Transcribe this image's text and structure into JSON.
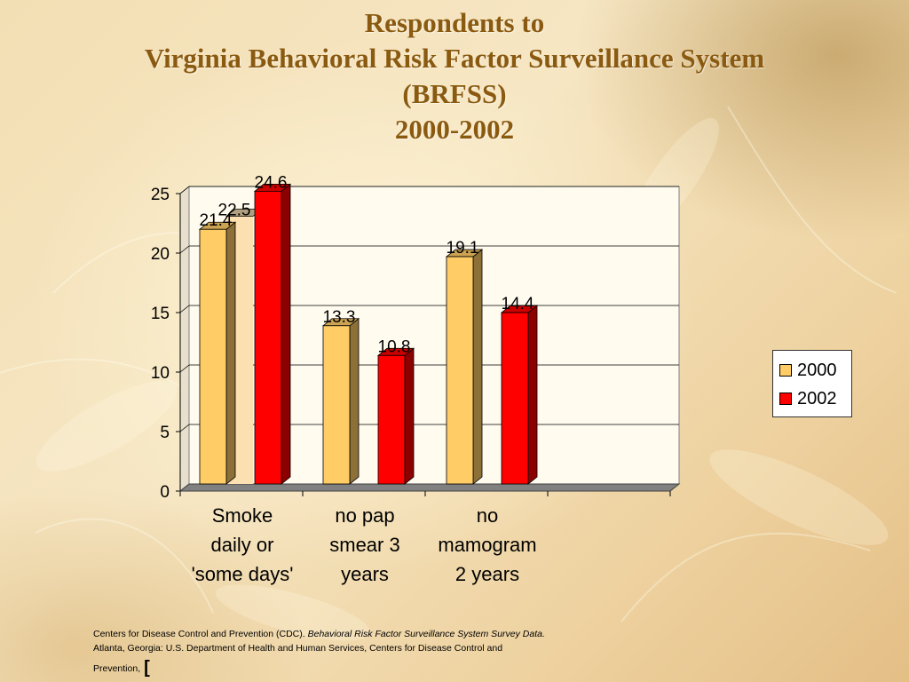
{
  "title": {
    "line1": "Respondents to",
    "line2": "Virginia Behavioral Risk Factor Surveillance System",
    "line3": "(BRFSS)",
    "line4": "2000-2002"
  },
  "chart_data": {
    "type": "bar",
    "categories": [
      [
        "Smoke",
        "daily or",
        "'some days'"
      ],
      [
        "no pap",
        "smear 3",
        "years"
      ],
      [
        "no",
        "mamogram",
        "2 years"
      ]
    ],
    "series": [
      {
        "name": "2000",
        "color": "#ffcc66",
        "values": [
          21.4,
          13.3,
          19.1
        ]
      },
      {
        "name": "2002",
        "color": "#ff0000",
        "values": [
          24.6,
          10.8,
          14.4
        ]
      }
    ],
    "extra_bar": {
      "category": 0,
      "value": 22.5,
      "label": "22.5",
      "color": "#fde0b2"
    },
    "data_labels": [
      [
        "21.4",
        "13.3",
        "19.1"
      ],
      [
        "24.6",
        "10.8",
        "14.4"
      ]
    ],
    "y_ticks": [
      "0",
      "5",
      "10",
      "15",
      "20",
      "25"
    ],
    "ylim": [
      0,
      25
    ],
    "grid": true,
    "legend_position": "right"
  },
  "source": {
    "line1_normal": "Centers for Disease Control and Prevention (CDC). ",
    "line1_italic": "Behavioral Risk Factor Surveillance System Survey Data.",
    "line2": "Atlanta, Georgia: U.S. Department of Health and Human Services, Centers for Disease Control and",
    "line3": "Prevention,",
    "bracket": "["
  }
}
